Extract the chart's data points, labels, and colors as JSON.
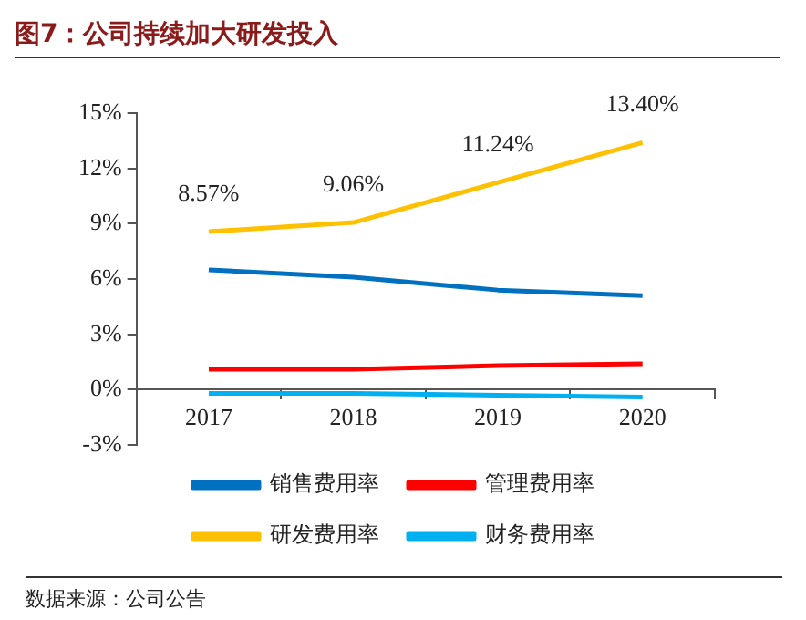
{
  "chart_data": {
    "type": "line",
    "title": "图7：公司持续加大研发投入",
    "categories": [
      "2017",
      "2018",
      "2019",
      "2020"
    ],
    "series": [
      {
        "name": "销售费用率",
        "color": "#0070c0",
        "values": [
          6.5,
          6.1,
          5.4,
          5.1
        ]
      },
      {
        "name": "管理费用率",
        "color": "#ff0000",
        "values": [
          1.1,
          1.1,
          1.3,
          1.4
        ]
      },
      {
        "name": "研发费用率",
        "color": "#ffc000",
        "values": [
          8.57,
          9.06,
          11.24,
          13.4
        ],
        "value_labels": [
          "8.57%",
          "9.06%",
          "11.24%",
          "13.40%"
        ]
      },
      {
        "name": "财务费用率",
        "color": "#00b0f0",
        "values": [
          -0.2,
          -0.2,
          -0.3,
          -0.4
        ]
      }
    ],
    "ylim": [
      -3,
      15
    ],
    "yticks": [
      {
        "value": -3,
        "label": "-3%"
      },
      {
        "value": 0,
        "label": "0%"
      },
      {
        "value": 3,
        "label": "3%"
      },
      {
        "value": 6,
        "label": "6%"
      },
      {
        "value": 9,
        "label": "9%"
      },
      {
        "value": 12,
        "label": "12%"
      },
      {
        "value": 15,
        "label": "15%"
      }
    ],
    "grid": false,
    "legend": "bottom",
    "marker": "none",
    "line_style": "solid",
    "annotations": [
      "数据来源：公司公告"
    ]
  }
}
